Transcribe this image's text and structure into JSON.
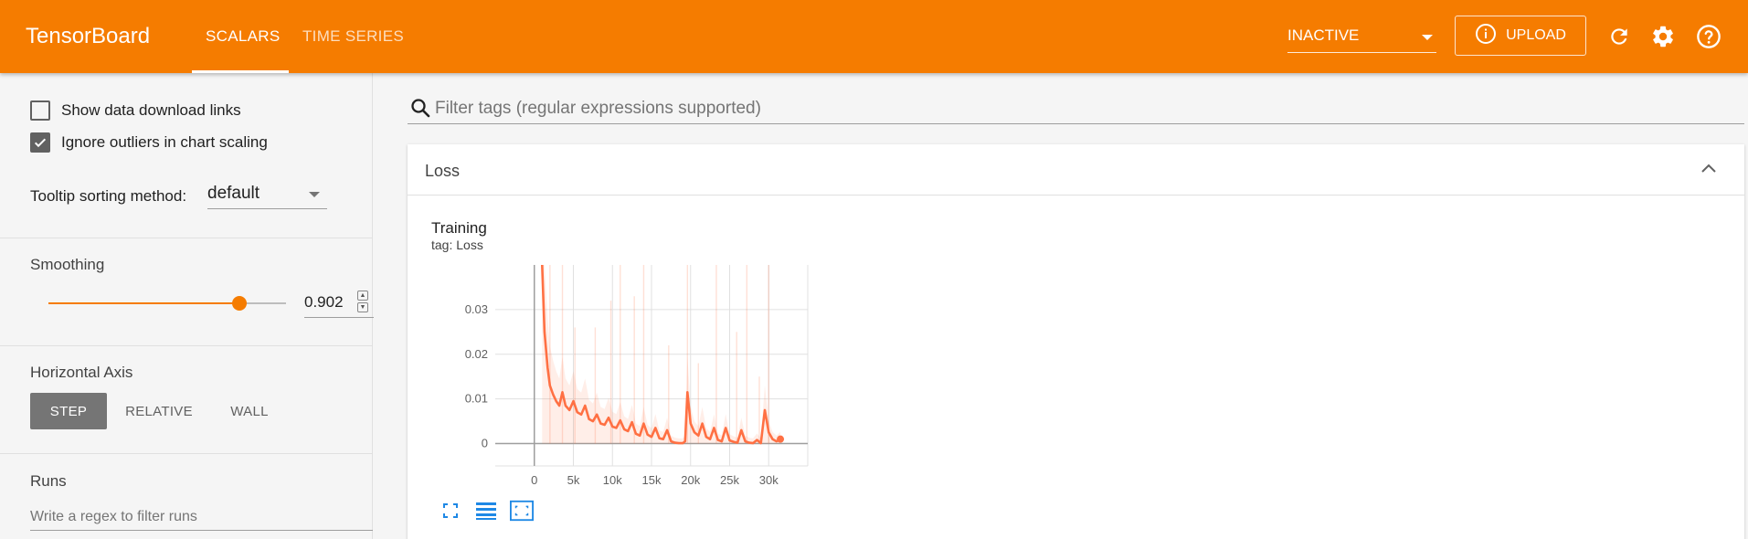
{
  "app": {
    "title": "TensorBoard"
  },
  "header": {
    "tabs": [
      {
        "label": "SCALARS",
        "active": true
      },
      {
        "label": "TIME SERIES",
        "active": false
      }
    ],
    "run_status": "INACTIVE",
    "upload_label": "UPLOAD",
    "icons": [
      "info-icon",
      "refresh-icon",
      "settings-icon",
      "help-icon"
    ],
    "accent_color": "#f57c00"
  },
  "sidebar": {
    "show_download_links": {
      "label": "Show data download links",
      "checked": false
    },
    "ignore_outliers": {
      "label": "Ignore outliers in chart scaling",
      "checked": true
    },
    "tooltip_sorting": {
      "label": "Tooltip sorting method:",
      "value": "default"
    },
    "smoothing": {
      "label": "Smoothing",
      "value": "0.902",
      "fraction": 0.902
    },
    "horizontal_axis": {
      "label": "Horizontal Axis",
      "options": [
        "STEP",
        "RELATIVE",
        "WALL"
      ],
      "selected": "STEP"
    },
    "runs": {
      "label": "Runs",
      "placeholder": "Write a regex to filter runs"
    }
  },
  "main": {
    "filter_placeholder": "Filter tags (regular expressions supported)",
    "card": {
      "title": "Loss"
    },
    "chart": {
      "title": "Training",
      "tag": "tag: Loss"
    }
  },
  "chart_data": {
    "type": "line",
    "title": "Training",
    "subtitle": "tag: Loss",
    "xlabel": "",
    "ylabel": "",
    "x_ticks": [
      0,
      5000,
      10000,
      15000,
      20000,
      25000,
      30000
    ],
    "x_tick_labels": [
      "0",
      "5k",
      "10k",
      "15k",
      "20k",
      "25k",
      "30k"
    ],
    "y_ticks": [
      0,
      0.01,
      0.02,
      0.03
    ],
    "y_tick_labels": [
      "0",
      "0.01",
      "0.02",
      "0.03"
    ],
    "xlim": [
      -5000,
      35000
    ],
    "ylim": [
      -0.005,
      0.04
    ],
    "grid": true,
    "color": "#ff7043",
    "series": [
      {
        "smoothed": true,
        "x": [
          1000,
          1300,
          1700,
          2000,
          2400,
          2800,
          3200,
          3600,
          4000,
          4500,
          5000,
          5500,
          6000,
          6500,
          7000,
          7500,
          8000,
          8500,
          9000,
          9500,
          10000,
          10500,
          11000,
          11500,
          12000,
          12500,
          13000,
          13500,
          14000,
          14500,
          15000,
          15500,
          16000,
          16500,
          17000,
          17500,
          18000,
          18500,
          19000,
          19300,
          19600,
          20000,
          20500,
          21000,
          21500,
          22000,
          22500,
          23000,
          23500,
          24000,
          24500,
          25000,
          25500,
          26000,
          26500,
          27000,
          27500,
          28000,
          28500,
          29000,
          29500,
          30000,
          30500,
          31000,
          31500
        ],
        "y": [
          0.04,
          0.025,
          0.017,
          0.013,
          0.011,
          0.0095,
          0.0085,
          0.0115,
          0.0085,
          0.0075,
          0.0095,
          0.007,
          0.0065,
          0.0085,
          0.0055,
          0.005,
          0.0065,
          0.0045,
          0.0042,
          0.0058,
          0.0038,
          0.0035,
          0.0052,
          0.0032,
          0.0028,
          0.0048,
          0.0022,
          0.0018,
          0.0045,
          0.002,
          0.0015,
          0.0035,
          0.0012,
          0.001,
          0.003,
          0.0005,
          0.0002,
          0.0001,
          0.0001,
          0.0005,
          0.0115,
          0.0045,
          0.0025,
          0.0018,
          0.0045,
          0.0015,
          0.001,
          0.0035,
          0.0008,
          0.0005,
          0.0035,
          0.0007,
          0.0004,
          0.0002,
          0.003,
          0.0005,
          0.0002,
          0.0001,
          0.0008,
          0.0001,
          0.0075,
          0.0025,
          0.001,
          0.0005,
          0.001
        ]
      },
      {
        "smoothed": false,
        "spikes": [
          {
            "x": 2000,
            "y": 0.04
          },
          {
            "x": 3600,
            "y": 0.04
          },
          {
            "x": 5200,
            "y": 0.026
          },
          {
            "x": 7800,
            "y": 0.026
          },
          {
            "x": 9800,
            "y": 0.032
          },
          {
            "x": 11000,
            "y": 0.04
          },
          {
            "x": 12800,
            "y": 0.033
          },
          {
            "x": 14000,
            "y": 0.04
          },
          {
            "x": 17200,
            "y": 0.022
          },
          {
            "x": 19600,
            "y": 0.04
          },
          {
            "x": 21000,
            "y": 0.018
          },
          {
            "x": 23300,
            "y": 0.04
          },
          {
            "x": 25900,
            "y": 0.025
          },
          {
            "x": 27200,
            "y": 0.04
          },
          {
            "x": 28800,
            "y": 0.015
          },
          {
            "x": 30000,
            "y": 0.04
          }
        ]
      }
    ]
  }
}
